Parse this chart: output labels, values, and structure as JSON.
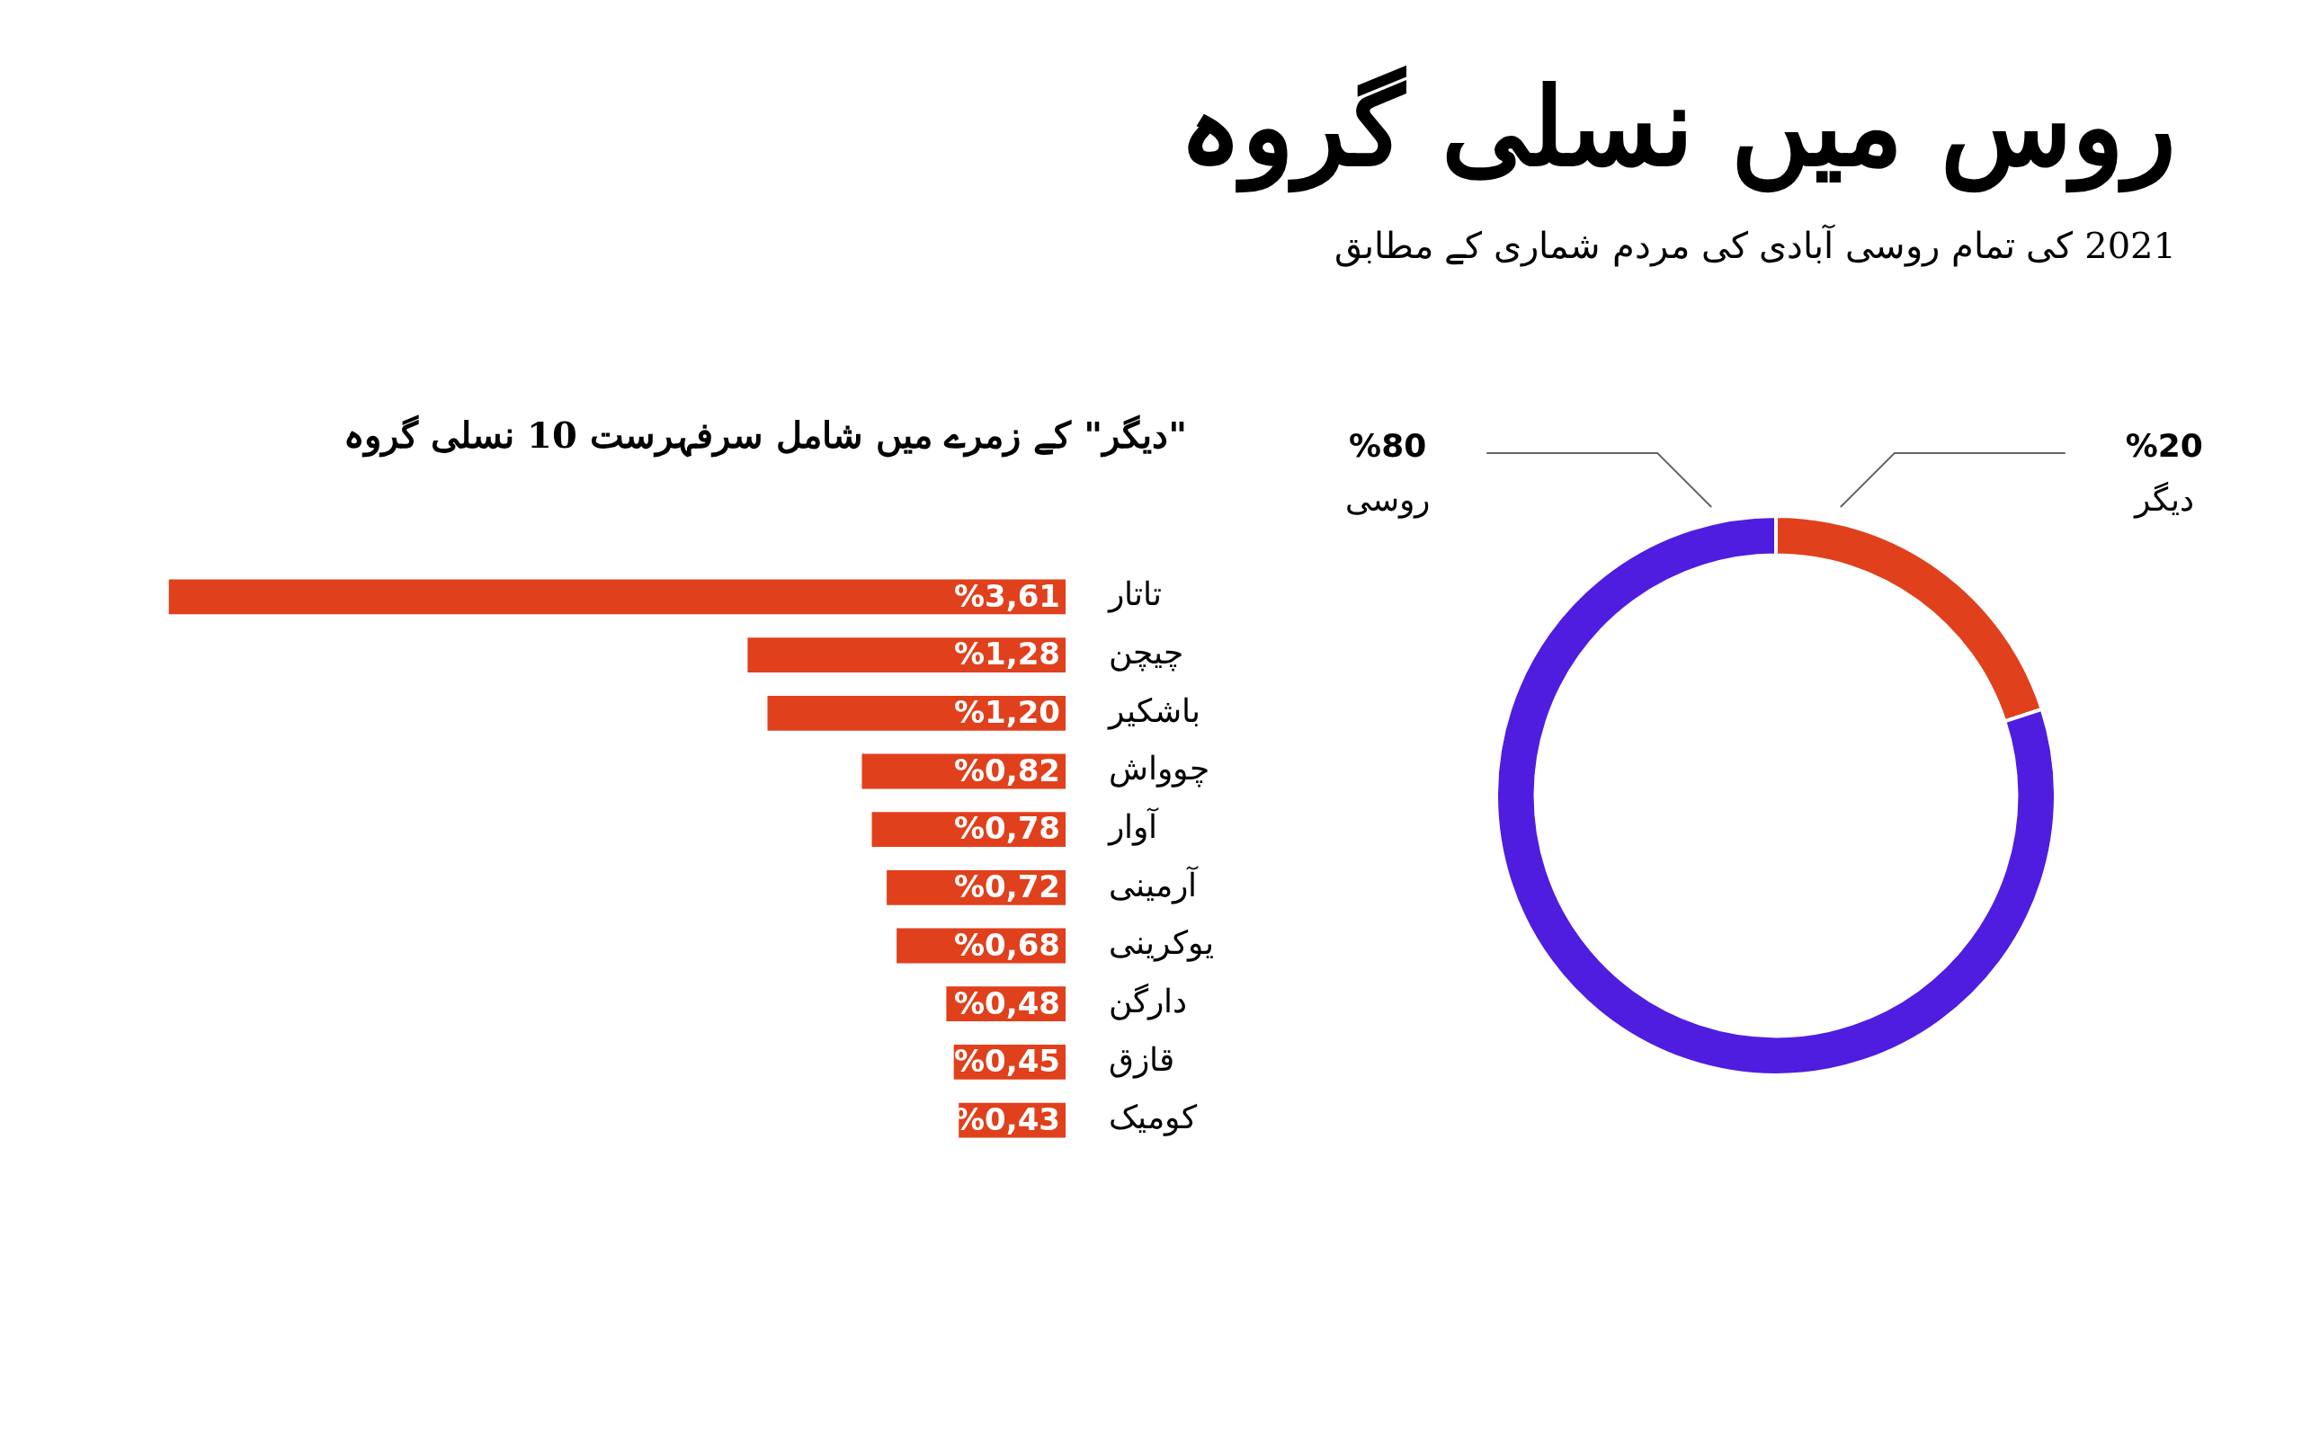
{
  "chart_data": [
    {
      "type": "donut",
      "title": "روس میں نسلی گروہ",
      "subtitle": "2021 کی تمام روسی آبادی کی مردم شماری کے مطابق",
      "categories": [
        "دیگر",
        "روسی"
      ],
      "values": [
        20,
        80
      ],
      "colors": [
        "#e0401c",
        "#4f1de0"
      ],
      "value_labels": [
        "%20",
        "%80"
      ]
    },
    {
      "type": "bar",
      "orientation": "horizontal",
      "title": "\"دیگر\" کے زمرے میں شامل سرفہرست 10 نسلی گروہ",
      "categories": [
        "تاتار",
        "چیچن",
        "باشکیر",
        "چوواش",
        "آوار",
        "آرمینی",
        "یوکرینی",
        "دارگن",
        "قازق",
        "کومیک"
      ],
      "values": [
        3.61,
        1.28,
        1.2,
        0.82,
        0.78,
        0.72,
        0.68,
        0.48,
        0.45,
        0.43
      ],
      "color": "#e0401c",
      "value_labels": [
        "%3,61",
        "%1,28",
        "%1,20",
        "%0,82",
        "%0,78",
        "%0,72",
        "%0,68",
        "%0,48",
        "%0,45",
        "%0,43"
      ]
    }
  ]
}
